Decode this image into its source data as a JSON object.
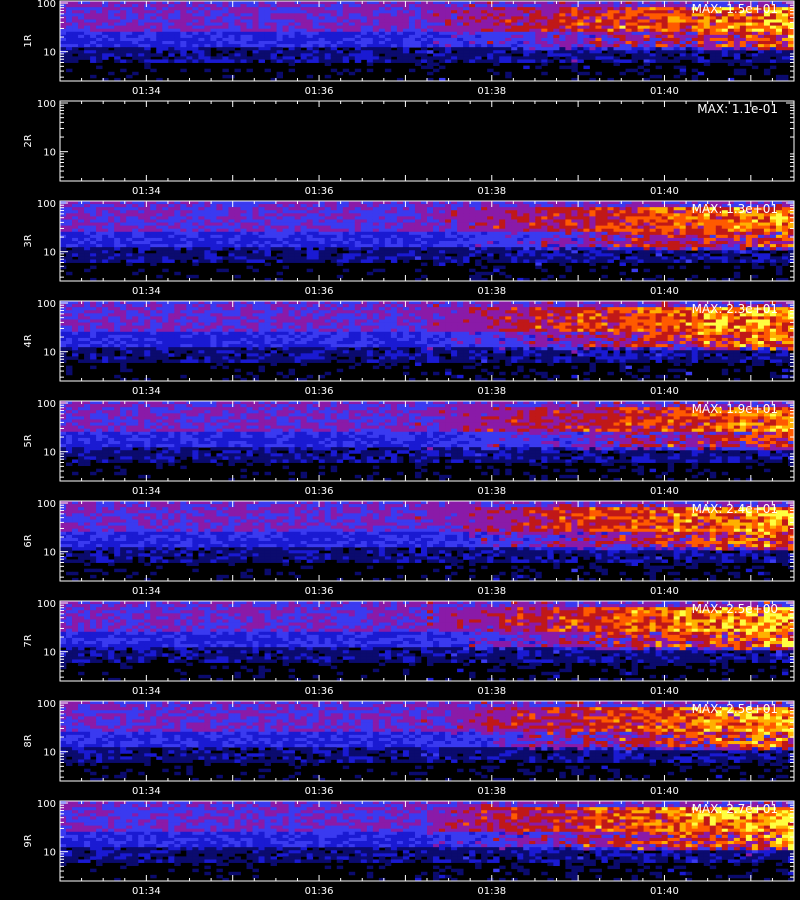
{
  "chart_data": {
    "type": "heatmap",
    "x_tick_labels": [
      "01:34",
      "01:36",
      "01:38",
      "01:40"
    ],
    "x_ticks_minutes": [
      94,
      96,
      98,
      100
    ],
    "x_range_minutes": [
      93.0,
      101.5
    ],
    "y_scale": "log",
    "y_tick_labels": [
      "100",
      "10"
    ],
    "y_ticks": [
      100,
      10
    ],
    "y_range": [
      2.5,
      110
    ],
    "colormap": [
      "#000000",
      "#0b0b6e",
      "#1a1ad2",
      "#3a3af0",
      "#8a1aa8",
      "#c01818",
      "#ff5a00",
      "#ffb000",
      "#ffff40"
    ],
    "panels": [
      {
        "label": "1R",
        "max_text": "MAX: 1.5e+01",
        "max": 15,
        "activity": 0.8
      },
      {
        "label": "2R",
        "max_text": "MAX: 1.1e-01",
        "max": 0.11,
        "activity": 0.0
      },
      {
        "label": "3R",
        "max_text": "MAX: 1.3e+01",
        "max": 13,
        "activity": 0.75
      },
      {
        "label": "4R",
        "max_text": "MAX: 2.3e+01",
        "max": 23,
        "activity": 0.9
      },
      {
        "label": "5R",
        "max_text": "MAX: 1.9e+01",
        "max": 19,
        "activity": 0.7
      },
      {
        "label": "6R",
        "max_text": "MAX: 2.4e+01",
        "max": 24,
        "activity": 0.85
      },
      {
        "label": "7R",
        "max_text": "MAX: 2.5e+00",
        "max": 2.5,
        "activity": 0.95
      },
      {
        "label": "8R",
        "max_text": "MAX: 2.5e+01",
        "max": 25,
        "activity": 0.85
      },
      {
        "label": "9R",
        "max_text": "MAX: 2.7e+01",
        "max": 27,
        "activity": 0.95
      }
    ]
  }
}
